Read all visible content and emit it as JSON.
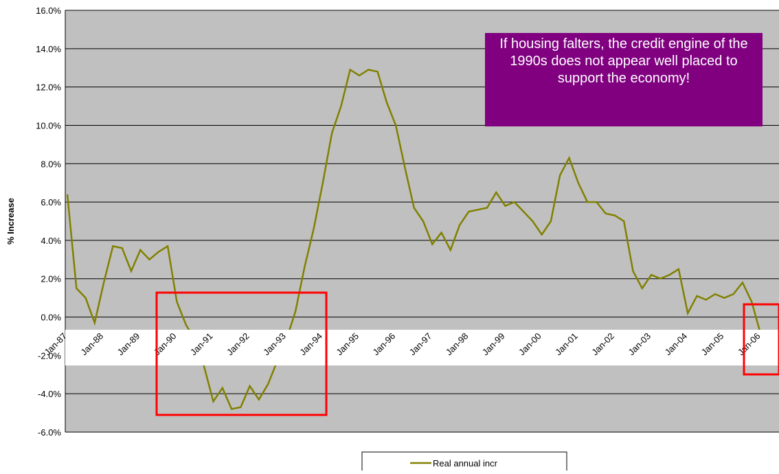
{
  "chart_data": {
    "type": "line",
    "y_label": "% Increase",
    "annotation": "If housing falters, the credit engine of the 1990s does not appear well placed to support the economy!",
    "categories": [
      "Jan-87",
      null,
      null,
      null,
      "Jan-88",
      null,
      null,
      null,
      "Jan-89",
      null,
      null,
      null,
      "Jan-90",
      null,
      null,
      null,
      "Jan-91",
      null,
      null,
      null,
      "Jan-92",
      null,
      null,
      null,
      "Jan-93",
      null,
      null,
      null,
      "Jan-94",
      null,
      null,
      null,
      "Jan-95",
      null,
      null,
      null,
      "Jan-96",
      null,
      null,
      null,
      "Jan-97",
      null,
      null,
      null,
      "Jan-98",
      null,
      null,
      null,
      "Jan-99",
      null,
      null,
      null,
      "Jan-00",
      null,
      null,
      null,
      "Jan-01",
      null,
      null,
      null,
      "Jan-02",
      null,
      null,
      null,
      "Jan-03",
      null,
      null,
      null,
      "Jan-04",
      null,
      null,
      null,
      "Jan-05",
      null,
      null,
      null,
      "Jan-06",
      null,
      null
    ],
    "series": [
      {
        "name": "Real annual incr",
        "color": "#808000",
        "values": [
          6.4,
          1.5,
          1.0,
          -0.3,
          1.8,
          3.7,
          3.6,
          2.4,
          3.5,
          3.0,
          3.4,
          3.7,
          0.8,
          -0.4,
          -1.2,
          -2.6,
          -4.4,
          -3.7,
          -4.8,
          -4.7,
          -3.6,
          -4.3,
          -3.5,
          -2.3,
          -1.2,
          0.3,
          2.6,
          4.6,
          7.0,
          9.6,
          11.0,
          12.9,
          12.6,
          12.9,
          12.8,
          11.2,
          10.0,
          7.8,
          5.7,
          5.0,
          3.8,
          4.4,
          3.5,
          4.8,
          5.5,
          5.6,
          5.7,
          6.5,
          5.8,
          6.0,
          5.5,
          5.0,
          4.3,
          5.0,
          7.4,
          8.3,
          7.0,
          6.0,
          6.0,
          5.4,
          5.3,
          5.0,
          2.4,
          1.5,
          2.2,
          2.0,
          2.2,
          2.5,
          0.2,
          1.1,
          0.9,
          1.2,
          1.0,
          1.2,
          1.8,
          0.8,
          -0.9,
          -1.2,
          -0.9
        ]
      }
    ],
    "ylim": [
      -6,
      16
    ],
    "yticks": [
      {
        "value": -6,
        "label": "-6.0%"
      },
      {
        "value": -4,
        "label": "-4.0%"
      },
      {
        "value": -2,
        "label": "-2.0%"
      },
      {
        "value": 0,
        "label": "0.0%"
      },
      {
        "value": 2,
        "label": "2.0%"
      },
      {
        "value": 4,
        "label": "4.0%"
      },
      {
        "value": 6,
        "label": "6.0%"
      },
      {
        "value": 8,
        "label": "8.0%"
      },
      {
        "value": 10,
        "label": "10.0%"
      },
      {
        "value": 12,
        "label": "12.0%"
      },
      {
        "value": 14,
        "label": "14.0%"
      },
      {
        "value": 16,
        "label": "16.0%"
      }
    ],
    "grid": true
  }
}
